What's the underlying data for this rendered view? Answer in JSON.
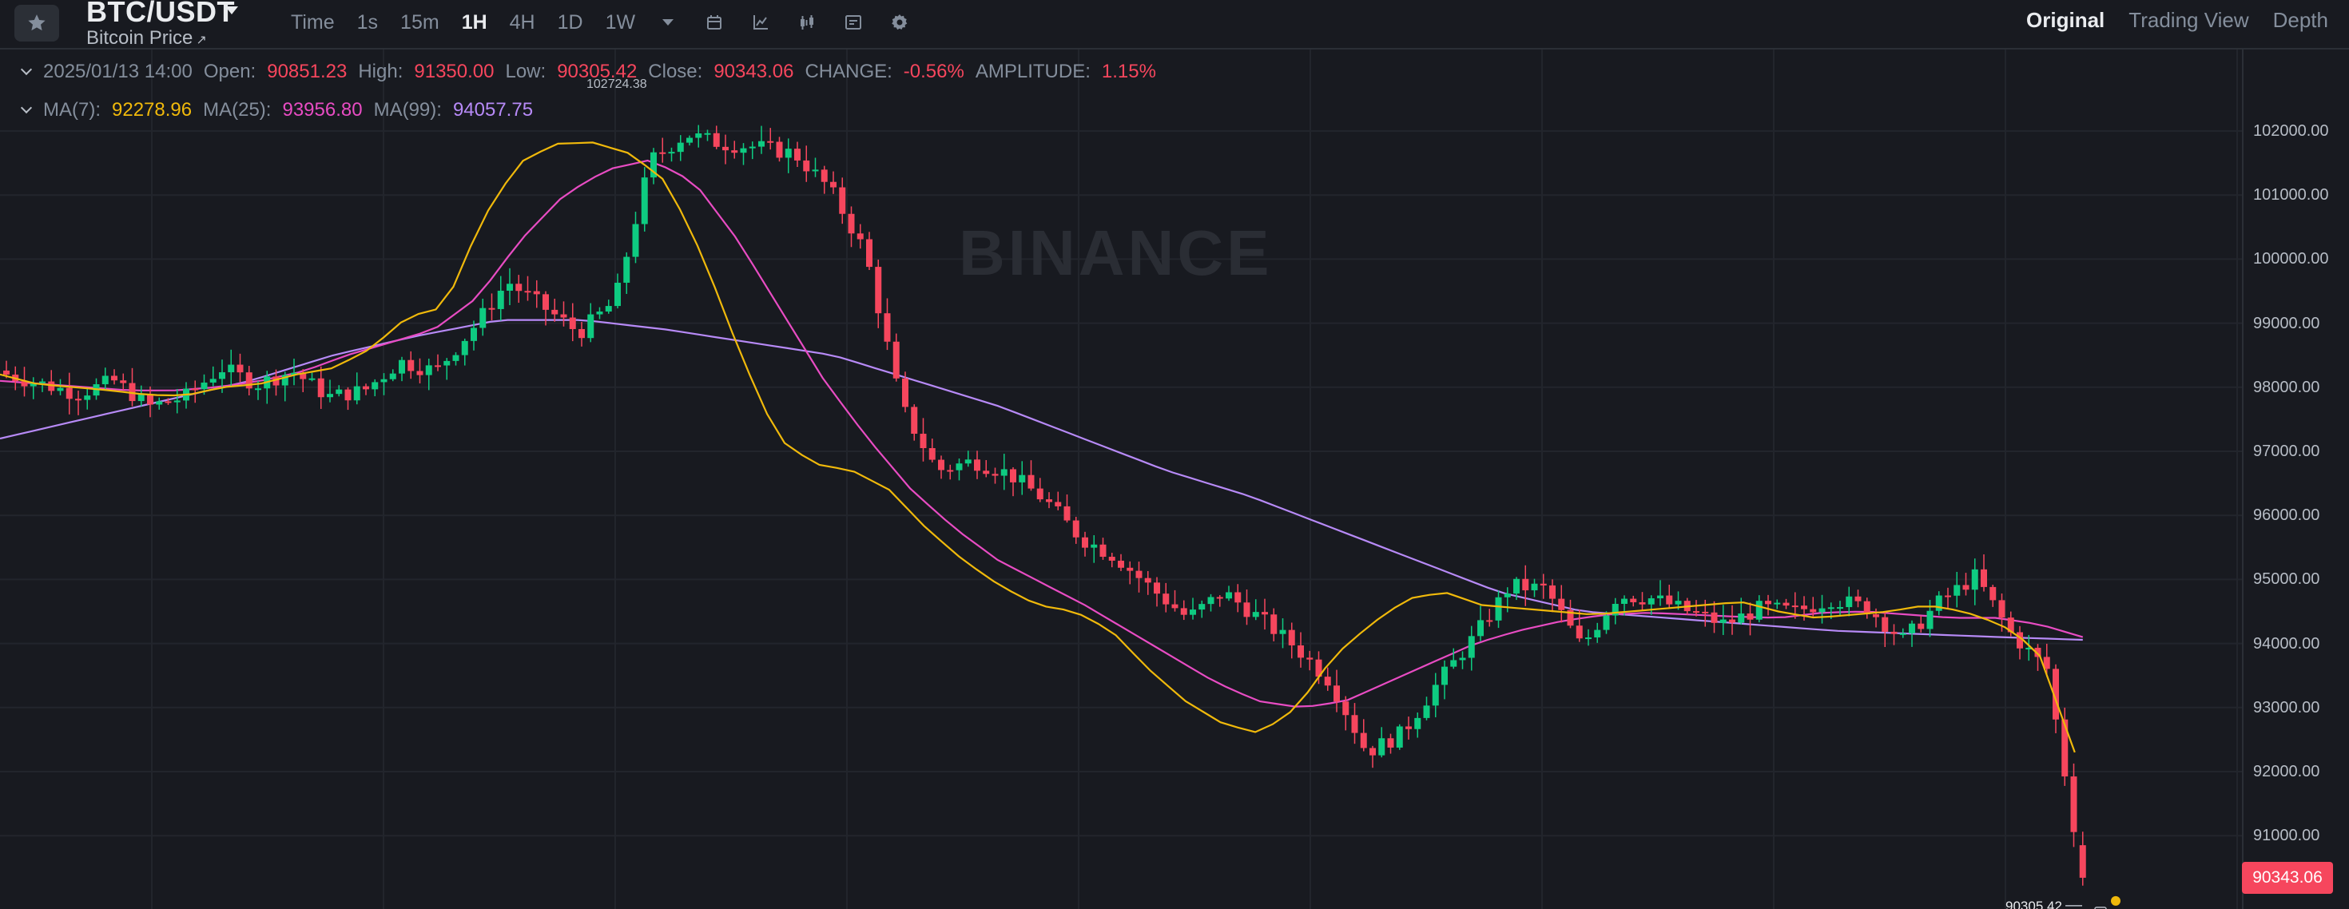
{
  "header": {
    "symbol": "BTC/USDT",
    "subtitle": "Bitcoin Price",
    "subtitle_link_icon": "↗",
    "intervals": [
      "Time",
      "1s",
      "15m",
      "1H",
      "4H",
      "1D",
      "1W"
    ],
    "active_interval": "1H",
    "icons": [
      "star-icon",
      "chevron-down-icon",
      "calendar-icon",
      "line-tool-icon",
      "candlestick-icon",
      "indicator-icon",
      "gear-icon"
    ],
    "views": [
      "Original",
      "Trading View",
      "Depth"
    ],
    "active_view": "Original"
  },
  "ohlc": {
    "datetime": "2025/01/13 14:00",
    "open_label": "Open:",
    "open": "90851.23",
    "high_label": "High:",
    "high": "91350.00",
    "low_label": "Low:",
    "low": "90305.42",
    "close_label": "Close:",
    "close": "90343.06",
    "change_label": "CHANGE:",
    "change": "-0.56%",
    "amplitude_label": "AMPLITUDE:",
    "amplitude": "1.15%"
  },
  "ma": {
    "ma7_label": "MA(7):",
    "ma7": "92278.96",
    "ma25_label": "MA(25):",
    "ma25": "93956.80",
    "ma99_label": "MA(99):",
    "ma99": "94057.75"
  },
  "colors": {
    "up": "#0ecb81",
    "down": "#f6465d",
    "ma7": "#f0b90b",
    "ma25": "#e84cc3",
    "ma99": "#b78af7",
    "background": "#181a20",
    "grid": "#22252c"
  },
  "watermark": "BINANCE",
  "current_price_tag": "90343.06",
  "chart_data": {
    "type": "candlestick",
    "y_axis_ticks": [
      "102000.00",
      "101000.00",
      "100000.00",
      "99000.00",
      "98000.00",
      "97000.00",
      "96000.00",
      "95000.00",
      "94000.00",
      "93000.00",
      "92000.00",
      "91000.00"
    ],
    "ylim": [
      90000,
      103500
    ],
    "high_marker": "102724.38",
    "low_marker": "90305.42",
    "close_anchors": [
      98200,
      98050,
      97900,
      98100,
      97700,
      97850,
      98300,
      98050,
      98250,
      97850,
      97950,
      98400,
      98250,
      98900,
      99650,
      99250,
      98850,
      99350,
      101550,
      101950,
      101800,
      101750,
      101650,
      101100,
      100100,
      97700,
      96700,
      96850,
      96650,
      96250,
      95650,
      95350,
      94850,
      94400,
      94800,
      94400,
      93950,
      93400,
      92300,
      92600,
      93400,
      94100,
      94900,
      94850,
      93950,
      94750,
      94700,
      94500,
      94300,
      94550,
      94500,
      94700,
      94550,
      94050,
      94650,
      95050,
      94150,
      93600,
      90343.06
    ],
    "ma7_anchors": [
      98200,
      98050,
      98000,
      97950,
      97880,
      97870,
      98000,
      98050,
      98200,
      98300,
      98600,
      99100,
      99250,
      100600,
      101500,
      101800,
      101820,
      101650,
      101200,
      100000,
      98500,
      97200,
      96800,
      96700,
      96400,
      95800,
      95300,
      94900,
      94600,
      94500,
      94200,
      93600,
      93100,
      92750,
      92600,
      93000,
      93800,
      94300,
      94700,
      94800,
      94600,
      94550,
      94500,
      94450,
      94500,
      94550,
      94600,
      94650,
      94500,
      94400,
      94450,
      94500,
      94600,
      94500,
      94300,
      93900,
      92300
    ],
    "ma25_anchors": [
      98100,
      98050,
      98000,
      97950,
      97950,
      98000,
      98100,
      98250,
      98500,
      98700,
      98900,
      99400,
      100300,
      101000,
      101400,
      101550,
      101200,
      100300,
      99200,
      98100,
      97200,
      96400,
      95800,
      95300,
      94950,
      94600,
      94200,
      93800,
      93400,
      93100,
      93000,
      93100,
      93400,
      93700,
      94000,
      94200,
      94350,
      94450,
      94480,
      94450,
      94420,
      94400,
      94480,
      94500,
      94450,
      94400,
      94400,
      94300,
      94100
    ],
    "ma99_anchors": [
      97200,
      97500,
      97800,
      98100,
      98500,
      98800,
      99050,
      99050,
      98900,
      98700,
      98500,
      98100,
      97700,
      97200,
      96700,
      96300,
      95800,
      95300,
      94800,
      94500,
      94400,
      94300,
      94200,
      94150,
      94100,
      94057.75
    ]
  }
}
